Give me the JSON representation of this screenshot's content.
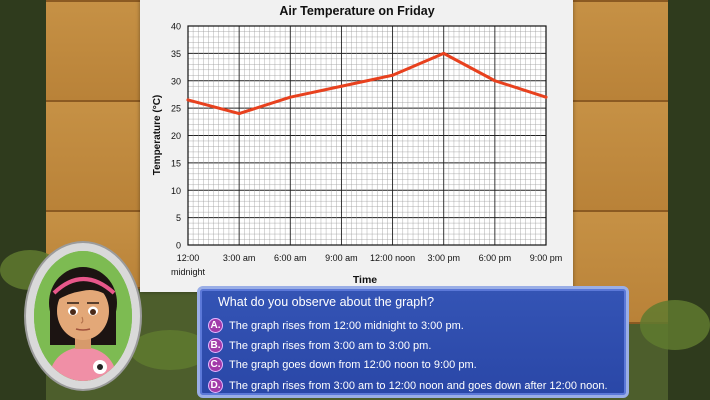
{
  "chart_data": {
    "type": "line",
    "title": "Air Temperature on Friday",
    "xlabel": "Time",
    "ylabel": "Temperature (°C)",
    "categories": [
      "12:00 midnight",
      "3:00 am",
      "6:00 am",
      "9:00 am",
      "12:00 noon",
      "3:00 pm",
      "6:00 pm",
      "9:00 pm"
    ],
    "tick_labels_line1": [
      "12:00",
      "3:00 am",
      "6:00 am",
      "9:00 am",
      "12:00 noon",
      "3:00 pm",
      "6:00 pm",
      "9:00 pm"
    ],
    "tick_labels_line2": [
      "midnight",
      "",
      "",
      "",
      "",
      "",
      "",
      ""
    ],
    "values": [
      26.5,
      24,
      27,
      29,
      31,
      35,
      30,
      27
    ],
    "ylim": [
      0,
      40
    ],
    "yticks": [
      0,
      5,
      10,
      15,
      20,
      25,
      30,
      35,
      40
    ],
    "grid": true,
    "line_color": "#e8411e"
  },
  "quiz": {
    "question": "What do you observe about the graph?",
    "options": [
      {
        "letter": "A.",
        "text": "The graph rises from 12:00 midnight to 3:00 pm."
      },
      {
        "letter": "B.",
        "text": "The graph rises from 3:00 am to 3:00 pm."
      },
      {
        "letter": "C.",
        "text": "The graph goes down from 12:00 noon to 9:00 pm."
      },
      {
        "letter": "D.",
        "text": "The graph rises from 3:00 am to 12:00 noon and goes down after 12:00 noon."
      }
    ]
  },
  "avatar": {
    "icon": "girl-avatar-icon"
  }
}
